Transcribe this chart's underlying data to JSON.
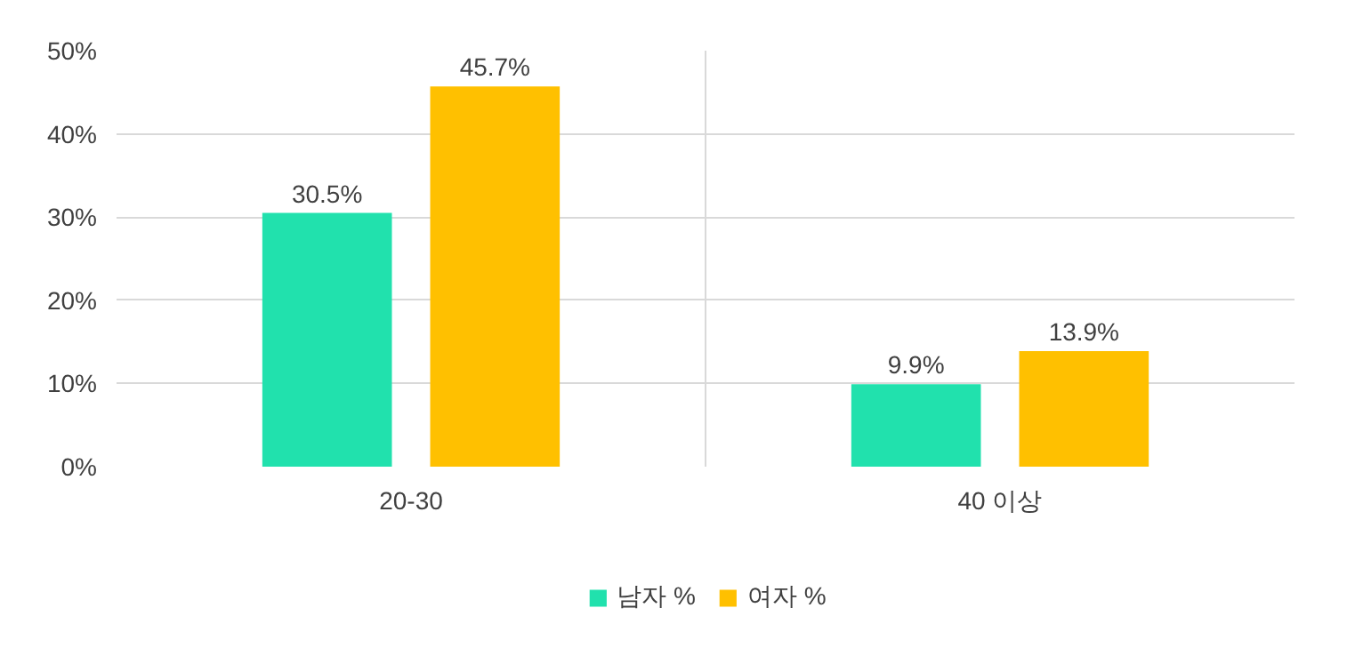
{
  "chart_data": {
    "type": "bar",
    "categories": [
      "20-30",
      "40 이상"
    ],
    "series": [
      {
        "name": "남자 %",
        "color": "#21e1ad",
        "values": [
          30.5,
          9.9
        ]
      },
      {
        "name": "여자 %",
        "color": "#ffc000",
        "values": [
          45.7,
          13.9
        ]
      }
    ],
    "ylim": [
      0,
      50
    ],
    "yticks": [
      {
        "value": 0,
        "label": "0%"
      },
      {
        "value": 10,
        "label": "10%"
      },
      {
        "value": 20,
        "label": "20%"
      },
      {
        "value": 30,
        "label": "30%"
      },
      {
        "value": 40,
        "label": "40%"
      },
      {
        "value": 50,
        "label": "50%"
      }
    ],
    "value_labels": [
      [
        "30.5%",
        "9.9%"
      ],
      [
        "45.7%",
        "13.9%"
      ]
    ],
    "grid": true,
    "legend": "bottom"
  }
}
